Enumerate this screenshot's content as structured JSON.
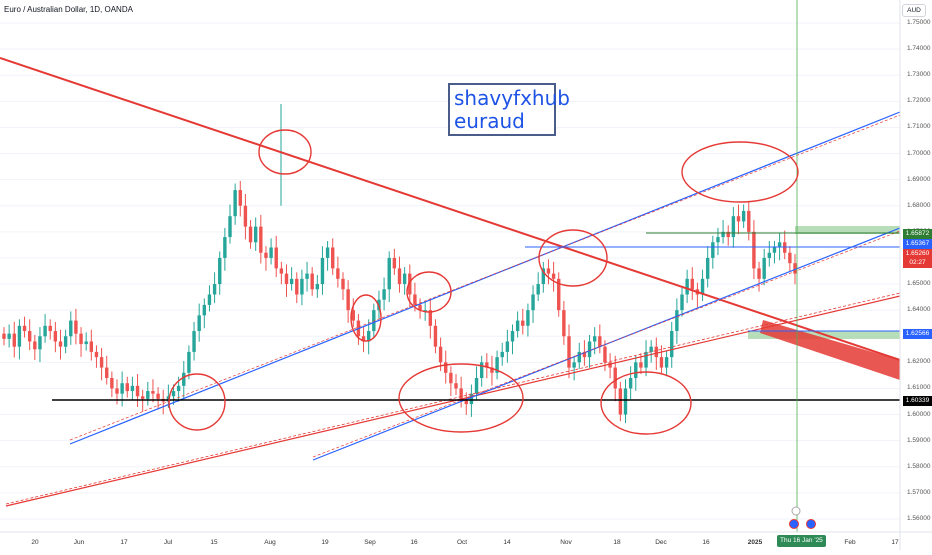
{
  "header": {
    "title": "Euro / Australian Dollar, 1D, OANDA",
    "currency_button": "AUD"
  },
  "annotation": {
    "line1": "shavyfxhub",
    "line2": "euraud"
  },
  "price_axis": {
    "ticks": [
      "1.75000",
      "1.74000",
      "1.73000",
      "1.72000",
      "1.71000",
      "1.70000",
      "1.69000",
      "1.68000",
      "1.67000",
      "1.66000",
      "1.65000",
      "1.64000",
      "1.63000",
      "1.62000",
      "1.61000",
      "1.60000",
      "1.59000",
      "1.58000",
      "1.57000",
      "1.56000"
    ],
    "labels": [
      {
        "text": "1.65872",
        "color": "#2e7d32"
      },
      {
        "text": "1.65367",
        "color": "#2962ff"
      },
      {
        "text": "1.65260",
        "color": "#e53935"
      },
      {
        "text": "02:27",
        "color": "#e53935"
      },
      {
        "text": "1.62566",
        "color": "#2962ff"
      },
      {
        "text": "1.60339",
        "color": "#000000"
      }
    ]
  },
  "time_axis": {
    "labels": [
      "20",
      "Jun",
      "17",
      "Jul",
      "15",
      "Aug",
      "19",
      "Sep",
      "16",
      "Oct",
      "14",
      "Nov",
      "18",
      "Dec",
      "16",
      "2025",
      "Feb",
      "17"
    ],
    "current": "Thu 16 Jan '25"
  },
  "colors": {
    "bull": "#26a69a",
    "bear": "#ef5350",
    "redline": "#e53935",
    "blueline": "#2962ff",
    "zone": "#a5d6a7"
  },
  "chart_data": {
    "type": "candlestick",
    "symbol": "EURAUD",
    "ylim": [
      1.555,
      1.755
    ],
    "levels": [
      1.65872,
      1.65367,
      1.6526,
      1.62566,
      1.60339
    ],
    "closes": [
      1.629,
      1.631,
      1.626,
      1.634,
      1.632,
      1.628,
      1.625,
      1.63,
      1.634,
      1.632,
      1.628,
      1.626,
      1.63,
      1.636,
      1.631,
      1.627,
      1.628,
      1.624,
      1.622,
      1.618,
      1.614,
      1.61,
      1.608,
      1.612,
      1.609,
      1.611,
      1.607,
      1.606,
      1.609,
      1.608,
      1.606,
      1.605,
      1.607,
      1.609,
      1.611,
      1.616,
      1.624,
      1.632,
      1.638,
      1.642,
      1.646,
      1.65,
      1.66,
      1.668,
      1.676,
      1.686,
      1.68,
      1.672,
      1.666,
      1.672,
      1.662,
      1.66,
      1.664,
      1.656,
      1.654,
      1.65,
      1.652,
      1.646,
      1.652,
      1.654,
      1.648,
      1.65,
      1.66,
      1.664,
      1.656,
      1.652,
      1.648,
      1.64,
      1.636,
      1.63,
      1.628,
      1.632,
      1.64,
      1.644,
      1.648,
      1.66,
      1.656,
      1.65,
      1.654,
      1.646,
      1.642,
      1.64,
      1.64,
      1.634,
      1.626,
      1.62,
      1.616,
      1.612,
      1.61,
      1.606,
      1.604,
      1.608,
      1.614,
      1.62,
      1.618,
      1.616,
      1.622,
      1.624,
      1.628,
      1.632,
      1.636,
      1.634,
      1.64,
      1.646,
      1.65,
      1.656,
      1.654,
      1.652,
      1.64,
      1.63,
      1.618,
      1.62,
      1.624,
      1.622,
      1.628,
      1.63,
      1.626,
      1.62,
      1.618,
      1.61,
      1.6,
      1.61,
      1.614,
      1.62,
      1.618,
      1.624,
      1.626,
      1.622,
      1.618,
      1.622,
      1.632,
      1.64,
      1.646,
      1.652,
      1.648,
      1.646,
      1.652,
      1.66,
      1.666,
      1.668,
      1.67,
      1.668,
      1.676,
      1.674,
      1.678,
      1.67,
      1.656,
      1.652,
      1.66,
      1.662,
      1.664,
      1.666,
      1.662,
      1.658,
      1.654
    ]
  }
}
